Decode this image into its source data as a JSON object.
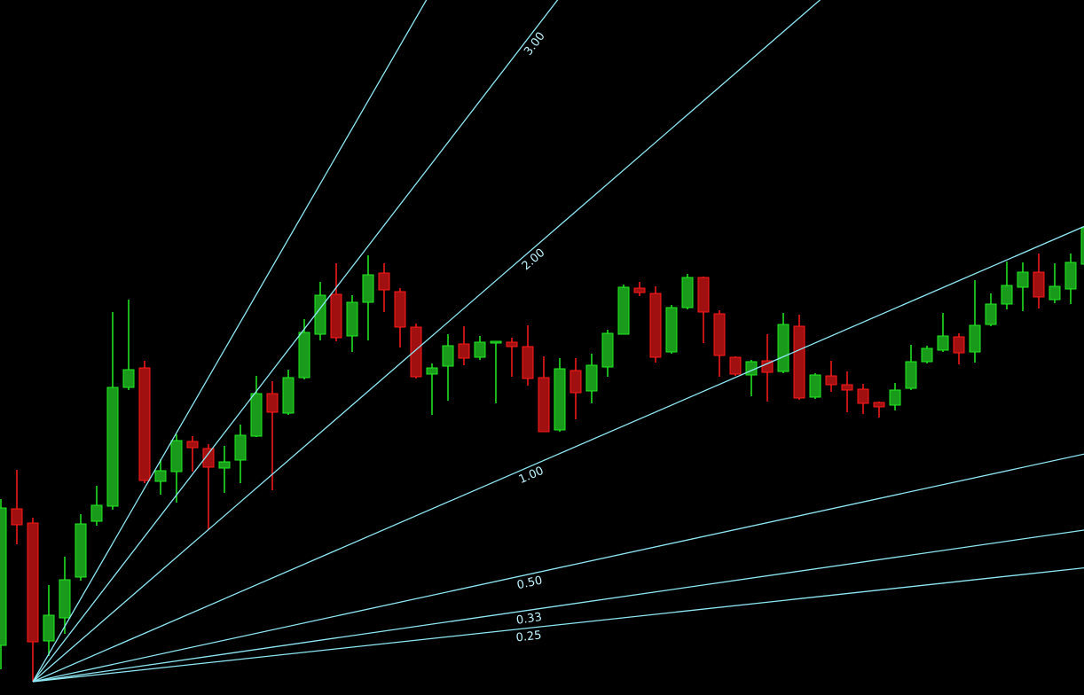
{
  "chart_data": {
    "type": "candlestick",
    "ylim": [
      0,
      784
    ],
    "up_color": "#1a9a1a",
    "up_wick_color": "#22ee22",
    "down_color": "#a01010",
    "down_wick_color": "#ff1a1a",
    "open": [
      56,
      210,
      194,
      61,
      87,
      133,
      196,
      213,
      347,
      369,
      241,
      252,
      286,
      278,
      256,
      265,
      292,
      340,
      318,
      358,
      407,
      452,
      405,
      443,
      476,
      455,
      415,
      362,
      371,
      396,
      381,
      397,
      398,
      393,
      358,
      299,
      366,
      343,
      370,
      407,
      459,
      453,
      387,
      437,
      471,
      430,
      381,
      361,
      377,
      365,
      416,
      336,
      360,
      350,
      345,
      330,
      327,
      346,
      376,
      389,
      404,
      387,
      418,
      441,
      460,
      477,
      446,
      458,
      486
    ],
    "high": [
      221,
      254,
      200,
      124,
      156,
      204,
      236,
      432,
      446,
      377,
      266,
      294,
      292,
      283,
      281,
      305,
      360,
      354,
      367,
      424,
      466,
      487,
      451,
      496,
      487,
      459,
      419,
      374,
      407,
      416,
      405,
      399,
      403,
      417,
      382,
      380,
      380,
      385,
      412,
      463,
      466,
      461,
      440,
      475,
      472,
      434,
      382,
      378,
      407,
      431,
      429,
      363,
      377,
      365,
      351,
      331,
      352,
      395,
      394,
      431,
      408,
      468,
      453,
      489,
      488,
      498,
      487,
      498,
      531
    ],
    "low": [
      29,
      170,
      15,
      44,
      69,
      129,
      191,
      209,
      344,
      239,
      226,
      217,
      252,
      187,
      228,
      239,
      291,
      231,
      316,
      356,
      400,
      399,
      387,
      400,
      432,
      392,
      357,
      316,
      332,
      372,
      378,
      329,
      359,
      349,
      297,
      297,
      311,
      329,
      359,
      407,
      450,
      375,
      385,
      435,
      397,
      359,
      360,
      337,
      331,
      363,
      333,
      334,
      342,
      319,
      317,
      313,
      321,
      344,
      374,
      387,
      373,
      375,
      416,
      435,
      433,
      436,
      442,
      441,
      484
    ],
    "close": [
      211,
      192,
      60,
      90,
      130,
      193,
      214,
      347,
      367,
      242,
      253,
      287,
      279,
      257,
      263,
      293,
      340,
      319,
      358,
      409,
      451,
      403,
      443,
      474,
      457,
      415,
      359,
      369,
      394,
      380,
      398,
      399,
      393,
      357,
      297,
      368,
      341,
      372,
      408,
      460,
      454,
      381,
      437,
      471,
      432,
      383,
      362,
      376,
      364,
      418,
      335,
      361,
      350,
      344,
      329,
      325,
      344,
      376,
      391,
      405,
      386,
      417,
      441,
      462,
      477,
      449,
      461,
      488,
      527
    ],
    "fan": {
      "origin_index": 2,
      "origin_value": 15,
      "price_per_bar": 7.8,
      "color": "#8ee8f4",
      "ratios": [
        {
          "value": 4,
          "label": null
        },
        {
          "value": 3,
          "label": "3.00"
        },
        {
          "value": 2,
          "label": "2.00"
        },
        {
          "value": 1,
          "label": "1.00"
        },
        {
          "value": 0.5,
          "label": "0.50"
        },
        {
          "value": 0.333,
          "label": "0.33"
        },
        {
          "value": 0.25,
          "label": "0.25"
        }
      ]
    }
  }
}
